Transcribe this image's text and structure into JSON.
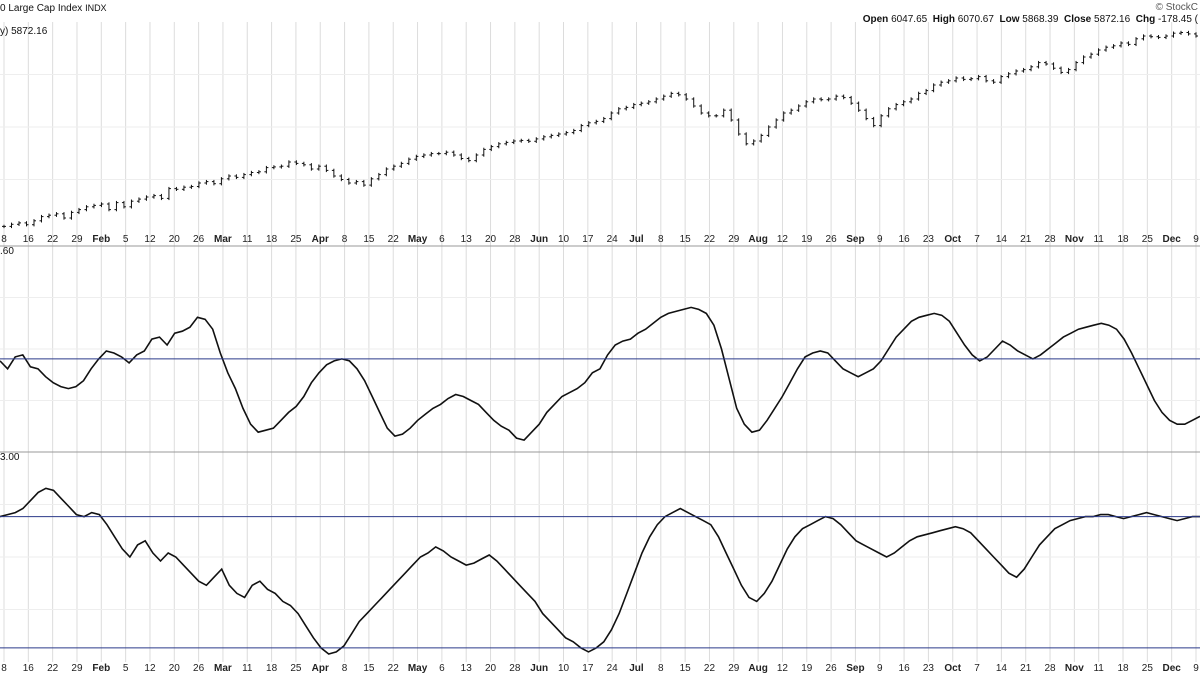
{
  "header": {
    "title": "0 Large Cap Index",
    "symbol": "INDX",
    "brand": "© StockC",
    "open_label": "Open",
    "open": "6047.65",
    "high_label": "High",
    "high": "6070.67",
    "low_label": "Low",
    "low": "5868.39",
    "close_label": "Close",
    "close": "5872.16",
    "chg_label": "Chg",
    "chg": "-178.45 (",
    "last_label": "y) 5872.16"
  },
  "panel_labels": {
    "p2_top": ".60",
    "p3_top": "3.00"
  },
  "chart_data": [
    {
      "type": "ohlc",
      "role": "price",
      "x_ticks": [
        "8",
        "16",
        "22",
        "29",
        "Feb",
        "5",
        "12",
        "20",
        "26",
        "Mar",
        "11",
        "18",
        "25",
        "Apr",
        "8",
        "15",
        "22",
        "May",
        "6",
        "13",
        "20",
        "28",
        "Jun",
        "10",
        "17",
        "24",
        "Jul",
        "8",
        "15",
        "22",
        "29",
        "Aug",
        "12",
        "19",
        "26",
        "Sep",
        "9",
        "16",
        "23",
        "Oct",
        "7",
        "14",
        "21",
        "28",
        "Nov",
        "11",
        "18",
        "25",
        "Dec",
        "9"
      ],
      "month_ticks": [
        "Feb",
        "Mar",
        "Apr",
        "May",
        "Jun",
        "Jul",
        "Aug",
        "Sep",
        "Oct",
        "Nov",
        "Dec"
      ],
      "last_close": 5872.16,
      "ylim": [
        4650,
        6150
      ],
      "closes": [
        4690,
        4705,
        4715,
        4702,
        4730,
        4760,
        4770,
        4780,
        4750,
        4790,
        4810,
        4830,
        4840,
        4850,
        4810,
        4860,
        4830,
        4870,
        4885,
        4900,
        4910,
        4890,
        4960,
        4955,
        4970,
        4975,
        5000,
        5010,
        4995,
        5030,
        5050,
        5040,
        5060,
        5075,
        5080,
        5110,
        5115,
        5120,
        5150,
        5140,
        5130,
        5100,
        5120,
        5090,
        5050,
        5025,
        5000,
        5010,
        4985,
        5030,
        5060,
        5100,
        5120,
        5140,
        5170,
        5190,
        5200,
        5210,
        5210,
        5220,
        5200,
        5175,
        5160,
        5200,
        5240,
        5260,
        5280,
        5290,
        5300,
        5304,
        5298,
        5315,
        5330,
        5340,
        5350,
        5360,
        5375,
        5410,
        5430,
        5440,
        5460,
        5500,
        5530,
        5540,
        5560,
        5570,
        5580,
        5600,
        5620,
        5640,
        5630,
        5600,
        5550,
        5500,
        5480,
        5480,
        5520,
        5450,
        5350,
        5280,
        5300,
        5340,
        5400,
        5450,
        5500,
        5520,
        5550,
        5580,
        5600,
        5595,
        5600,
        5620,
        5610,
        5570,
        5520,
        5460,
        5410,
        5480,
        5530,
        5560,
        5580,
        5600,
        5640,
        5660,
        5700,
        5720,
        5730,
        5750,
        5740,
        5745,
        5760,
        5730,
        5720,
        5760,
        5780,
        5800,
        5810,
        5830,
        5860,
        5850,
        5820,
        5790,
        5810,
        5860,
        5900,
        5920,
        5950,
        5970,
        5980,
        6000,
        5990,
        6030,
        6050,
        6045,
        6040,
        6050,
        6070,
        6075,
        6065,
        6050
      ],
      "ohlc_note": "daily bars"
    },
    {
      "type": "line",
      "role": "indicator-1",
      "reference_line": 0.45,
      "ylim": [
        0,
        1
      ],
      "values": [
        0.44,
        0.4,
        0.46,
        0.47,
        0.41,
        0.4,
        0.36,
        0.33,
        0.31,
        0.3,
        0.31,
        0.34,
        0.4,
        0.45,
        0.49,
        0.48,
        0.46,
        0.43,
        0.47,
        0.49,
        0.55,
        0.56,
        0.52,
        0.58,
        0.59,
        0.61,
        0.66,
        0.65,
        0.6,
        0.48,
        0.38,
        0.3,
        0.2,
        0.12,
        0.08,
        0.09,
        0.1,
        0.14,
        0.18,
        0.21,
        0.26,
        0.33,
        0.38,
        0.42,
        0.44,
        0.45,
        0.44,
        0.4,
        0.34,
        0.26,
        0.18,
        0.1,
        0.06,
        0.07,
        0.1,
        0.14,
        0.17,
        0.2,
        0.22,
        0.25,
        0.27,
        0.26,
        0.24,
        0.22,
        0.18,
        0.14,
        0.11,
        0.09,
        0.05,
        0.04,
        0.08,
        0.12,
        0.18,
        0.22,
        0.26,
        0.28,
        0.3,
        0.33,
        0.38,
        0.4,
        0.47,
        0.52,
        0.54,
        0.55,
        0.58,
        0.6,
        0.63,
        0.66,
        0.68,
        0.69,
        0.7,
        0.71,
        0.7,
        0.68,
        0.62,
        0.5,
        0.35,
        0.2,
        0.12,
        0.08,
        0.09,
        0.14,
        0.2,
        0.26,
        0.33,
        0.4,
        0.46,
        0.48,
        0.49,
        0.48,
        0.44,
        0.4,
        0.38,
        0.36,
        0.38,
        0.4,
        0.44,
        0.5,
        0.56,
        0.6,
        0.64,
        0.66,
        0.67,
        0.68,
        0.67,
        0.64,
        0.58,
        0.52,
        0.47,
        0.44,
        0.46,
        0.5,
        0.54,
        0.52,
        0.49,
        0.47,
        0.45,
        0.47,
        0.5,
        0.53,
        0.56,
        0.58,
        0.6,
        0.61,
        0.62,
        0.63,
        0.62,
        0.6,
        0.55,
        0.48,
        0.4,
        0.32,
        0.24,
        0.18,
        0.14,
        0.12,
        0.12,
        0.14,
        0.16
      ],
      "note": "shape traced from screenshot"
    },
    {
      "type": "line",
      "role": "indicator-2",
      "reference_lines": [
        0.7,
        0.05
      ],
      "ylim": [
        0,
        1
      ],
      "values": [
        0.7,
        0.71,
        0.72,
        0.74,
        0.78,
        0.82,
        0.84,
        0.83,
        0.79,
        0.75,
        0.71,
        0.7,
        0.72,
        0.71,
        0.66,
        0.6,
        0.54,
        0.5,
        0.56,
        0.58,
        0.52,
        0.48,
        0.52,
        0.5,
        0.46,
        0.42,
        0.38,
        0.36,
        0.4,
        0.44,
        0.36,
        0.32,
        0.3,
        0.36,
        0.38,
        0.34,
        0.32,
        0.28,
        0.26,
        0.22,
        0.16,
        0.1,
        0.05,
        0.02,
        0.03,
        0.06,
        0.12,
        0.18,
        0.22,
        0.26,
        0.3,
        0.34,
        0.38,
        0.42,
        0.46,
        0.5,
        0.52,
        0.55,
        0.53,
        0.5,
        0.48,
        0.46,
        0.47,
        0.49,
        0.51,
        0.48,
        0.44,
        0.4,
        0.36,
        0.32,
        0.28,
        0.22,
        0.18,
        0.14,
        0.1,
        0.08,
        0.05,
        0.03,
        0.05,
        0.08,
        0.14,
        0.22,
        0.32,
        0.42,
        0.52,
        0.6,
        0.66,
        0.7,
        0.72,
        0.74,
        0.72,
        0.7,
        0.68,
        0.66,
        0.6,
        0.52,
        0.44,
        0.36,
        0.3,
        0.28,
        0.32,
        0.38,
        0.46,
        0.54,
        0.6,
        0.64,
        0.66,
        0.68,
        0.7,
        0.69,
        0.66,
        0.62,
        0.58,
        0.56,
        0.54,
        0.52,
        0.5,
        0.52,
        0.55,
        0.58,
        0.6,
        0.61,
        0.62,
        0.63,
        0.64,
        0.65,
        0.64,
        0.62,
        0.58,
        0.54,
        0.5,
        0.46,
        0.42,
        0.4,
        0.44,
        0.5,
        0.56,
        0.6,
        0.64,
        0.66,
        0.68,
        0.69,
        0.7,
        0.7,
        0.71,
        0.71,
        0.7,
        0.69,
        0.7,
        0.71,
        0.72,
        0.71,
        0.7,
        0.69,
        0.68,
        0.69,
        0.7,
        0.7
      ],
      "note": "shape traced from screenshot"
    }
  ]
}
